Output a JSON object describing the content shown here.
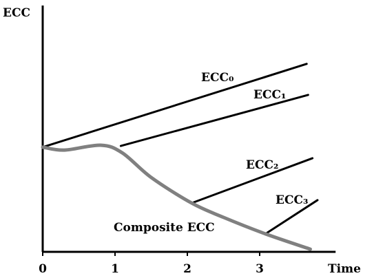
{
  "chart_data": {
    "type": "line",
    "ylabel": "ECC",
    "xlabel": "Time",
    "xlim": [
      0,
      4.05
    ],
    "ylim": [
      0,
      100
    ],
    "xticks": [
      0,
      1,
      2,
      3
    ],
    "series": [
      {
        "name": "ECC₀",
        "color": "#000000",
        "x": [
          0,
          3.65
        ],
        "values": [
          42.5,
          76.3
        ]
      },
      {
        "name": "ECC₁",
        "color": "#000000",
        "x": [
          1.08,
          3.67
        ],
        "values": [
          43,
          63.7
        ]
      },
      {
        "name": "ECC₂",
        "color": "#000000",
        "x": [
          2.06,
          3.73
        ],
        "values": [
          19.8,
          38
        ]
      },
      {
        "name": "ECC₃",
        "color": "#000000",
        "x": [
          3.08,
          3.8
        ],
        "values": [
          7.3,
          21
        ]
      },
      {
        "name": "Composite ECC",
        "color": "#808080",
        "x": [
          0,
          0.3,
          0.8,
          1.1,
          1.5,
          2.06,
          2.5,
          3.08,
          3.7
        ],
        "values": [
          42.5,
          41.3,
          43.3,
          40.2,
          30.2,
          19.8,
          14,
          7.3,
          1.1
        ]
      }
    ]
  }
}
